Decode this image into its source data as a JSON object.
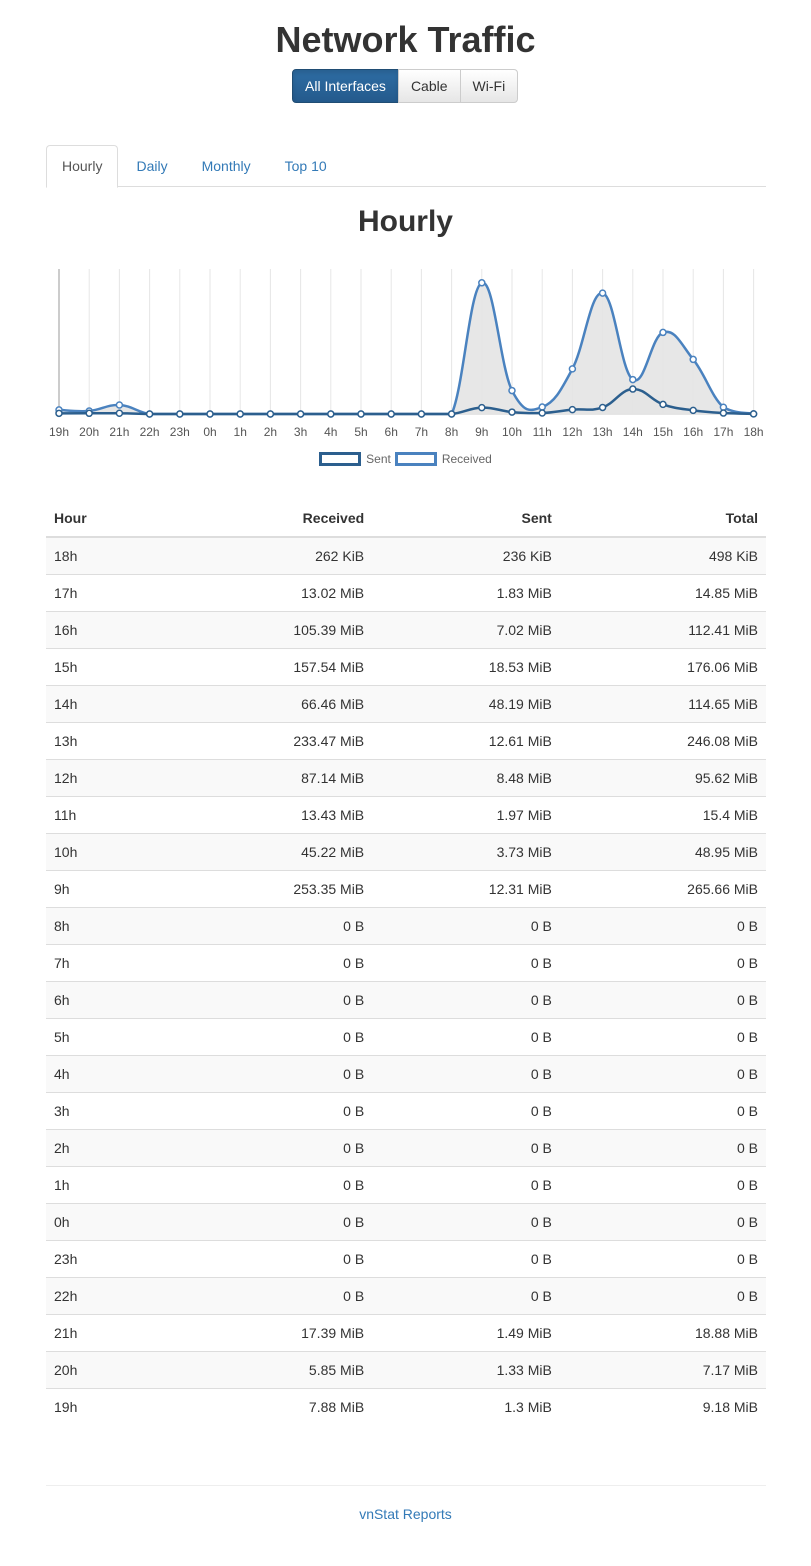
{
  "page": {
    "title": "Network Traffic"
  },
  "interfaces": [
    "All Interfaces",
    "Cable",
    "Wi-Fi"
  ],
  "interface_selected": "All Interfaces",
  "tabs": [
    "Hourly",
    "Daily",
    "Monthly",
    "Top 10"
  ],
  "tab_selected": "Hourly",
  "chart_heading": "Hourly",
  "chart_data": {
    "type": "area",
    "title": "Hourly",
    "categories": [
      "19h",
      "20h",
      "21h",
      "22h",
      "23h",
      "0h",
      "1h",
      "2h",
      "3h",
      "4h",
      "5h",
      "6h",
      "7h",
      "8h",
      "9h",
      "10h",
      "11h",
      "12h",
      "13h",
      "14h",
      "15h",
      "16h",
      "17h",
      "18h"
    ],
    "series": [
      {
        "name": "Sent",
        "unit": "MiB",
        "values": [
          1.3,
          1.33,
          1.49,
          0,
          0,
          0,
          0,
          0,
          0,
          0,
          0,
          0,
          0,
          0,
          12.31,
          3.73,
          1.97,
          8.48,
          12.61,
          48.19,
          18.53,
          7.02,
          1.83,
          0.23
        ]
      },
      {
        "name": "Received",
        "unit": "MiB",
        "values": [
          7.88,
          5.85,
          17.39,
          0,
          0,
          0,
          0,
          0,
          0,
          0,
          0,
          0,
          0,
          0,
          253.35,
          45.22,
          13.43,
          87.14,
          233.47,
          66.46,
          157.54,
          105.39,
          13.02,
          0.26
        ]
      }
    ],
    "ylim": [
      0,
      280
    ],
    "grid": true,
    "legend": "bottom-center",
    "colors": {
      "sent": "#2c5f8e",
      "received": "#4a82bf",
      "fill": "#e4e4e4"
    }
  },
  "table": {
    "headers": [
      "Hour",
      "Received",
      "Sent",
      "Total"
    ],
    "rows": [
      [
        "18h",
        "262 KiB",
        "236 KiB",
        "498 KiB"
      ],
      [
        "17h",
        "13.02 MiB",
        "1.83 MiB",
        "14.85 MiB"
      ],
      [
        "16h",
        "105.39 MiB",
        "7.02 MiB",
        "112.41 MiB"
      ],
      [
        "15h",
        "157.54 MiB",
        "18.53 MiB",
        "176.06 MiB"
      ],
      [
        "14h",
        "66.46 MiB",
        "48.19 MiB",
        "114.65 MiB"
      ],
      [
        "13h",
        "233.47 MiB",
        "12.61 MiB",
        "246.08 MiB"
      ],
      [
        "12h",
        "87.14 MiB",
        "8.48 MiB",
        "95.62 MiB"
      ],
      [
        "11h",
        "13.43 MiB",
        "1.97 MiB",
        "15.4 MiB"
      ],
      [
        "10h",
        "45.22 MiB",
        "3.73 MiB",
        "48.95 MiB"
      ],
      [
        "9h",
        "253.35 MiB",
        "12.31 MiB",
        "265.66 MiB"
      ],
      [
        "8h",
        "0 B",
        "0 B",
        "0 B"
      ],
      [
        "7h",
        "0 B",
        "0 B",
        "0 B"
      ],
      [
        "6h",
        "0 B",
        "0 B",
        "0 B"
      ],
      [
        "5h",
        "0 B",
        "0 B",
        "0 B"
      ],
      [
        "4h",
        "0 B",
        "0 B",
        "0 B"
      ],
      [
        "3h",
        "0 B",
        "0 B",
        "0 B"
      ],
      [
        "2h",
        "0 B",
        "0 B",
        "0 B"
      ],
      [
        "1h",
        "0 B",
        "0 B",
        "0 B"
      ],
      [
        "0h",
        "0 B",
        "0 B",
        "0 B"
      ],
      [
        "23h",
        "0 B",
        "0 B",
        "0 B"
      ],
      [
        "22h",
        "0 B",
        "0 B",
        "0 B"
      ],
      [
        "21h",
        "17.39 MiB",
        "1.49 MiB",
        "18.88 MiB"
      ],
      [
        "20h",
        "5.85 MiB",
        "1.33 MiB",
        "7.17 MiB"
      ],
      [
        "19h",
        "7.88 MiB",
        "1.3 MiB",
        "9.18 MiB"
      ]
    ]
  },
  "footer": {
    "link": "vnStat Reports"
  }
}
